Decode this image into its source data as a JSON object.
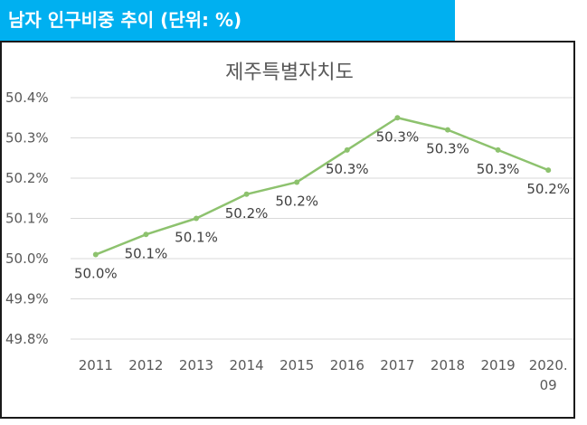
{
  "header": {
    "title": "남자 인구비중 추이 (단위: %)"
  },
  "colors": {
    "header_bg": "#00b0f0",
    "line": "#8dc26e",
    "grid": "#d9d9d9",
    "text": "#595959"
  },
  "chart_data": {
    "type": "line",
    "title": "제주특별자치도",
    "categories": [
      "2011",
      "2012",
      "2013",
      "2014",
      "2015",
      "2016",
      "2017",
      "2018",
      "2019",
      "2020.09"
    ],
    "category_lines": [
      [
        "2011"
      ],
      [
        "2012"
      ],
      [
        "2013"
      ],
      [
        "2014"
      ],
      [
        "2015"
      ],
      [
        "2016"
      ],
      [
        "2017"
      ],
      [
        "2018"
      ],
      [
        "2019"
      ],
      [
        "2020.",
        "09"
      ]
    ],
    "series": [
      {
        "name": "남자 인구비중",
        "values": [
          50.01,
          50.06,
          50.1,
          50.16,
          50.19,
          50.27,
          50.35,
          50.32,
          50.27,
          50.22
        ],
        "labels": [
          "50.0%",
          "50.1%",
          "50.1%",
          "50.2%",
          "50.2%",
          "50.3%",
          "50.3%",
          "50.3%",
          "50.3%",
          "50.2%"
        ]
      }
    ],
    "ylim": [
      49.8,
      50.4
    ],
    "yticks": [
      49.8,
      49.9,
      50.0,
      50.1,
      50.2,
      50.3,
      50.4
    ],
    "ytick_labels": [
      "49.8%",
      "49.9%",
      "50.0%",
      "50.1%",
      "50.2%",
      "50.3%",
      "50.4%"
    ],
    "grid": true,
    "legend": "none",
    "xlabel": "",
    "ylabel": ""
  }
}
